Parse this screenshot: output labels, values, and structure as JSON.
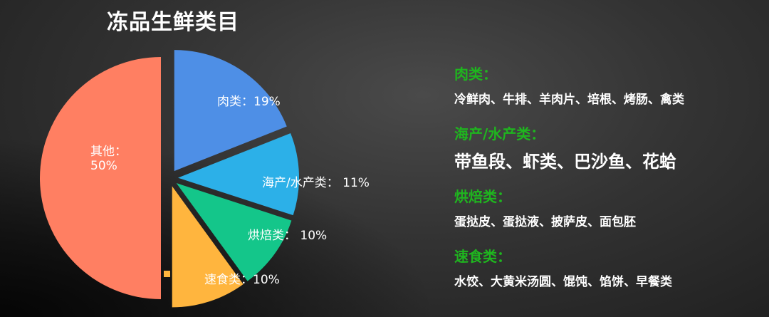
{
  "title": "冻品生鲜类目",
  "chart_data": {
    "type": "pie",
    "title": "冻品生鲜类目",
    "exploded": true,
    "slices": [
      {
        "name": "肉类",
        "value": 19,
        "label": "肉类：19%",
        "color": "#4E8FE6"
      },
      {
        "name": "海产/水产类",
        "value": 11,
        "label": "海产/水产类： 11%",
        "color": "#2CB0E8"
      },
      {
        "name": "烘焙类",
        "value": 10,
        "label": "烘焙类： 10%",
        "color": "#14C68A"
      },
      {
        "name": "速食类",
        "value": 10,
        "label": "速食类：10%",
        "color": "#FFB53E"
      },
      {
        "name": "其他",
        "value": 50,
        "label_line1": "其他：",
        "label_line2": "50%",
        "color": "#FF7F62"
      }
    ]
  },
  "categories": [
    {
      "heading": "肉类：",
      "items": "冷鲜肉、牛排、羊肉片、培根、烤肠、禽类"
    },
    {
      "heading": "海产/水产类：",
      "items": "带鱼段、虾类、巴沙鱼、花蛤"
    },
    {
      "heading": "烘焙类：",
      "items": "蛋挞皮、蛋挞液、披萨皮、面包胚"
    },
    {
      "heading": "速食类：",
      "items": "水饺、大黄米汤圆、馄饨、馅饼、早餐类"
    }
  ],
  "heading_color": "#1FB51F"
}
